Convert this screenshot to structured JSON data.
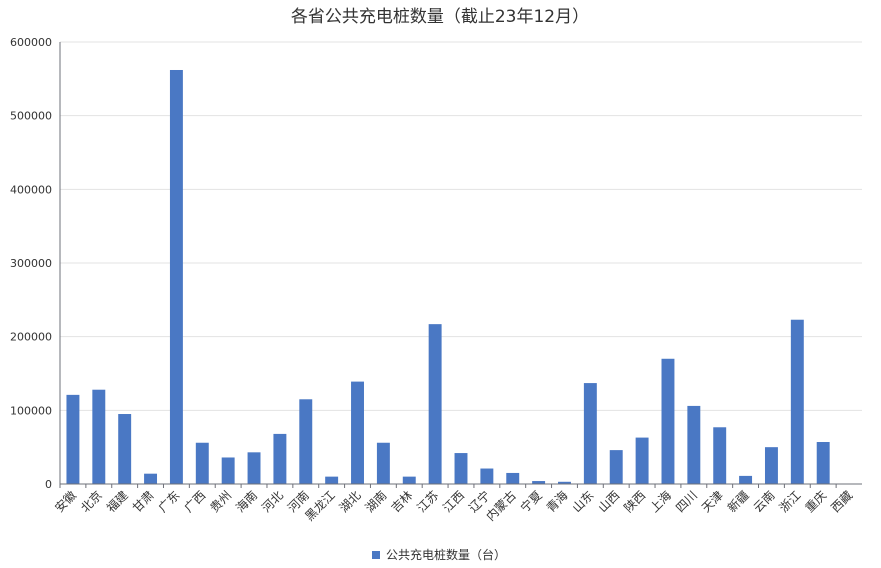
{
  "chart_data": {
    "type": "bar",
    "title": "各省公共充电桩数量（截止23年12月）",
    "xlabel": "",
    "ylabel": "",
    "ylim": [
      0,
      600000
    ],
    "yticks": [
      0,
      100000,
      200000,
      300000,
      400000,
      500000,
      600000
    ],
    "ytick_labels": [
      "0",
      "100000",
      "200000",
      "300000",
      "400000",
      "500000",
      "600000"
    ],
    "grid": true,
    "legend_position": "bottom",
    "categories": [
      "安徽",
      "北京",
      "福建",
      "甘肃",
      "广东",
      "广西",
      "贵州",
      "海南",
      "河北",
      "河南",
      "黑龙江",
      "湖北",
      "湖南",
      "吉林",
      "江苏",
      "江西",
      "辽宁",
      "内蒙古",
      "宁夏",
      "青海",
      "山东",
      "山西",
      "陕西",
      "上海",
      "四川",
      "天津",
      "新疆",
      "云南",
      "浙江",
      "重庆",
      "西藏"
    ],
    "series": [
      {
        "name": "公共充电桩数量（台）",
        "color": "#4a78c4",
        "values": [
          121000,
          128000,
          95000,
          14000,
          562000,
          56000,
          36000,
          43000,
          68000,
          115000,
          10000,
          139000,
          56000,
          10000,
          217000,
          42000,
          21000,
          15000,
          4000,
          3000,
          137000,
          46000,
          63000,
          170000,
          106000,
          77000,
          11000,
          50000,
          223000,
          57000,
          500
        ]
      }
    ]
  }
}
